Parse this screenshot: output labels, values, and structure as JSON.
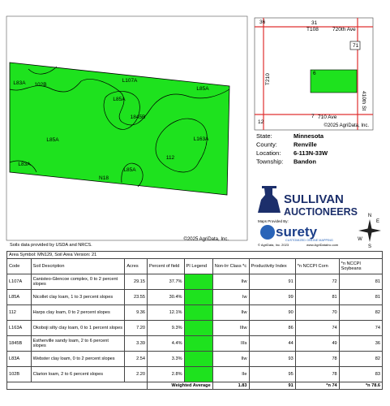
{
  "map": {
    "labels": [
      "L83A",
      "102B",
      "L107A",
      "L85A",
      "L85A",
      "1845B",
      "L85A",
      "L163A",
      "112",
      "L83A",
      "L85A",
      "N18"
    ],
    "copyright": "©2025 AgriData, Inc."
  },
  "inset": {
    "labels": [
      "36",
      "31",
      "T108",
      "720th Ave",
      "71",
      "T210",
      "410th St",
      "6",
      "12",
      "7",
      "710 Ave"
    ],
    "copyright": "©2025 AgriData, Inc."
  },
  "location": {
    "rows": [
      [
        "State:",
        "Minnesota"
      ],
      [
        "County:",
        "Renville"
      ],
      [
        "Location:",
        "6-113N-33W"
      ],
      [
        "Township:",
        "Bandon"
      ]
    ]
  },
  "logos": {
    "sullivan": "SULLIVAN",
    "auctioneers": "AUCTIONEERS",
    "maps_by": "Maps Provided By:",
    "surety": "surety",
    "tagline": "CUSTOMIZED ONLINE MAPPING",
    "agri": "© AgriData, Inc. 2023",
    "url": "www.AgriDataInc.com"
  },
  "compass": [
    "N",
    "E",
    "S",
    "W"
  ],
  "source": "Soils data provided by USDA and NRCS.",
  "table": {
    "area": "Area Symbol: MN129, Soil Area Version: 21",
    "header": [
      "Code",
      "Soil Description",
      "Acres",
      "Percent of field",
      "PI Legend",
      "Non-Irr Class *c",
      "Productivity Index",
      "*n NCCPI Corn",
      "*n NCCPI Soybeans"
    ],
    "rows": [
      [
        "L107A",
        "Canisteo-Glencoe complex, 0 to 2 percent slopes",
        "29.15",
        "37.7%",
        "IIw",
        "91",
        "72",
        "81"
      ],
      [
        "L85A",
        "Nicollet clay loam, 1 to 3 percent slopes",
        "23.55",
        "30.4%",
        "Iw",
        "99",
        "81",
        "81"
      ],
      [
        "112",
        "Harps clay loam, 0 to 2 percent slopes",
        "9.36",
        "12.1%",
        "IIw",
        "90",
        "70",
        "82"
      ],
      [
        "L163A",
        "Okoboji silty clay loam, 0 to 1 percent slopes",
        "7.20",
        "9.3%",
        "IIIw",
        "86",
        "74",
        "74"
      ],
      [
        "1845B",
        "Estherville sandy loam, 2 to 6 percent slopes",
        "3.39",
        "4.4%",
        "IIIs",
        "44",
        "49",
        "36"
      ],
      [
        "L83A",
        "Webster clay loam, 0 to 2 percent slopes",
        "2.54",
        "3.3%",
        "IIw",
        "93",
        "78",
        "82"
      ],
      [
        "102B",
        "Clarion loam, 2 to 6 percent slopes",
        "2.20",
        "2.8%",
        "IIe",
        "95",
        "78",
        "83"
      ]
    ],
    "footer": [
      "Weighted Average",
      "1.83",
      "91",
      "*n 74",
      "*n 78.6"
    ]
  }
}
